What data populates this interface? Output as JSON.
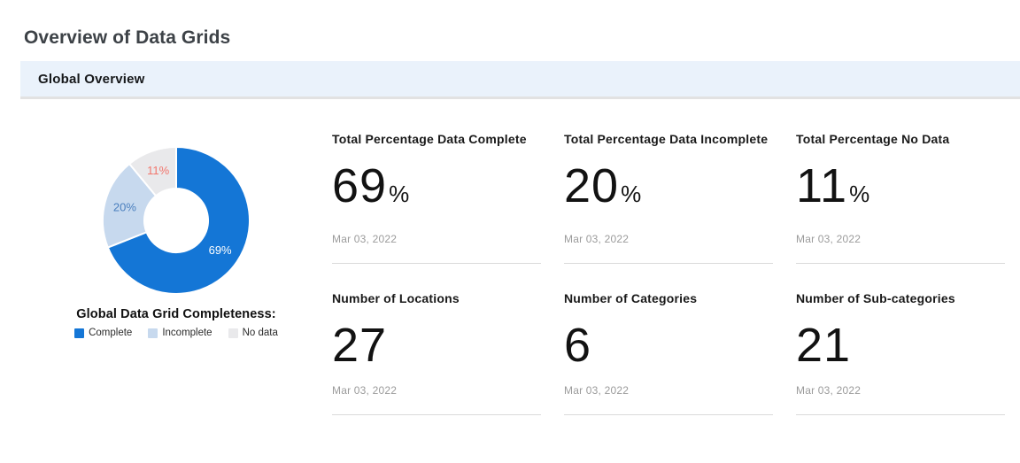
{
  "page": {
    "title": "Overview of Data Grids"
  },
  "section": {
    "title": "Global Overview"
  },
  "chart_data": {
    "type": "pie",
    "donut": true,
    "title": "Global Data Grid Completeness:",
    "start_angle_deg": 0,
    "direction": "clockwise",
    "legend_position": "bottom",
    "slices": [
      {
        "label": "Complete",
        "value": 69,
        "display": "69%",
        "color": "#1476d6",
        "label_color": "#ffffff"
      },
      {
        "label": "Incomplete",
        "value": 20,
        "display": "20%",
        "color": "#c7d9ee",
        "label_color": "#4a7fbe"
      },
      {
        "label": "No data",
        "value": 11,
        "display": "11%",
        "color": "#e9e9eb",
        "label_color": "#f2766d"
      }
    ]
  },
  "cards": [
    {
      "title": "Total Percentage Data Complete",
      "value": "69",
      "unit": "%",
      "date": "Mar 03, 2022"
    },
    {
      "title": "Total Percentage Data Incomplete",
      "value": "20",
      "unit": "%",
      "date": "Mar 03, 2022"
    },
    {
      "title": "Total Percentage No Data",
      "value": "11",
      "unit": "%",
      "date": "Mar 03, 2022"
    },
    {
      "title": "Number of Locations",
      "value": "27",
      "unit": "",
      "date": "Mar 03, 2022"
    },
    {
      "title": "Number of Categories",
      "value": "6",
      "unit": "",
      "date": "Mar 03, 2022"
    },
    {
      "title": "Number of Sub-categories",
      "value": "21",
      "unit": "",
      "date": "Mar 03, 2022"
    }
  ]
}
